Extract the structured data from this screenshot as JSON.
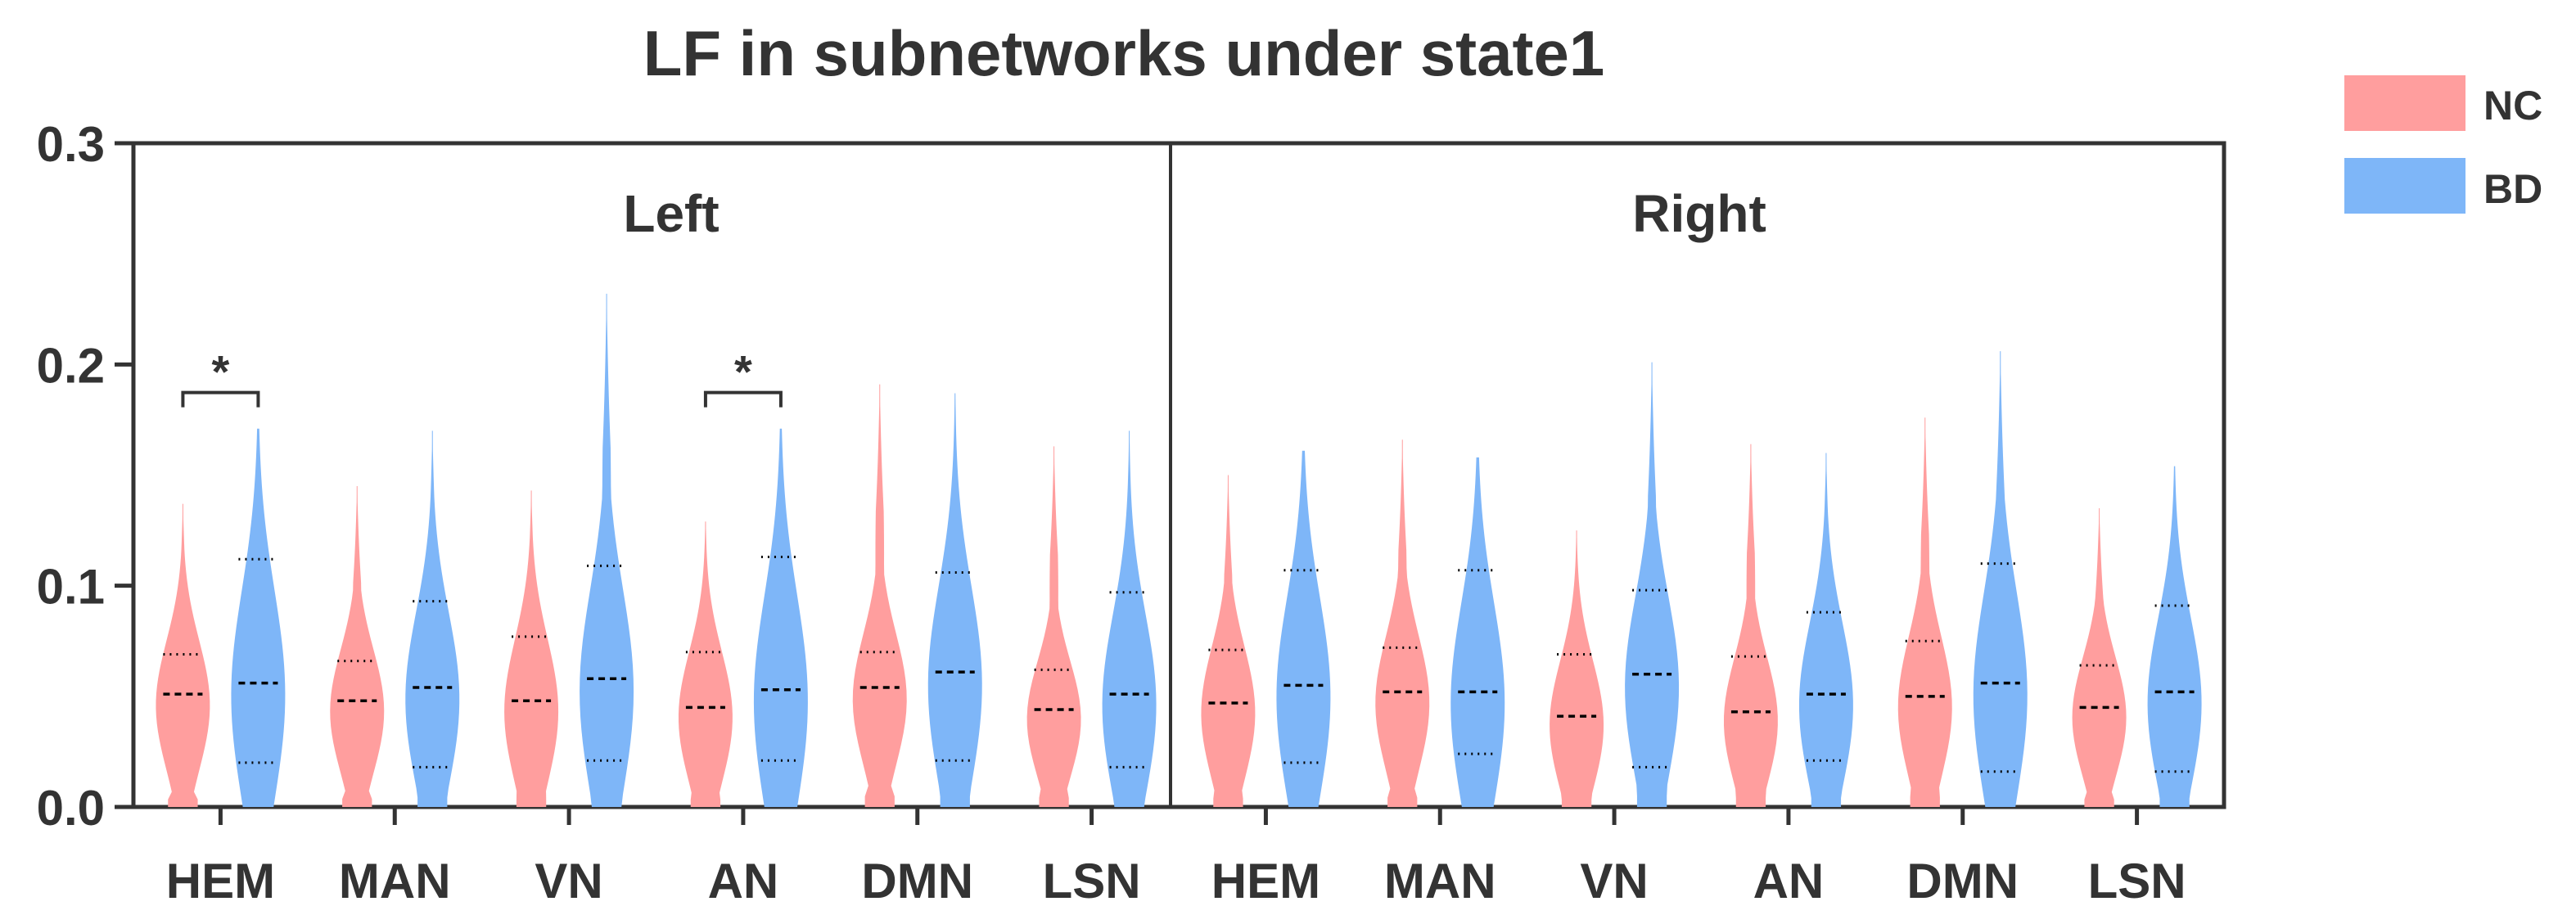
{
  "chart_data": {
    "type": "violin",
    "title": "LF in subnetworks under state1",
    "xlabel": "",
    "ylabel": "",
    "ylim": [
      0,
      0.3
    ],
    "yticks": [
      0.0,
      0.1,
      0.2,
      0.3
    ],
    "ytick_labels": [
      "0.0",
      "0.1",
      "0.2",
      "0.3"
    ],
    "grid": false,
    "legend": {
      "placement": "top-right",
      "entries": [
        {
          "name": "NC",
          "color": "#FF9E9E"
        },
        {
          "name": "BD",
          "color": "#7EB6F8"
        }
      ]
    },
    "panels": [
      {
        "label": "Left",
        "categories": [
          "HEM",
          "MAN",
          "VN",
          "AN",
          "DMN",
          "LSN"
        ],
        "groups": [
          {
            "category": "HEM",
            "significance": "*",
            "NC": {
              "min": 0.0,
              "max": 0.137,
              "q1": 0.0,
              "median": 0.051,
              "q3": 0.069
            },
            "BD": {
              "min": 0.0,
              "max": 0.171,
              "q1": 0.02,
              "median": 0.056,
              "q3": 0.112
            }
          },
          {
            "category": "MAN",
            "significance": "",
            "NC": {
              "min": 0.0,
              "max": 0.145,
              "q1": 0.0,
              "median": 0.048,
              "q3": 0.066
            },
            "BD": {
              "min": 0.0,
              "max": 0.17,
              "q1": 0.018,
              "median": 0.054,
              "q3": 0.093
            }
          },
          {
            "category": "VN",
            "significance": "",
            "NC": {
              "min": 0.0,
              "max": 0.143,
              "q1": 0.0,
              "median": 0.048,
              "q3": 0.077
            },
            "BD": {
              "min": 0.0,
              "max": 0.232,
              "q1": 0.021,
              "median": 0.058,
              "q3": 0.109
            }
          },
          {
            "category": "AN",
            "significance": "*",
            "NC": {
              "min": 0.0,
              "max": 0.129,
              "q1": 0.0,
              "median": 0.045,
              "q3": 0.07
            },
            "BD": {
              "min": 0.0,
              "max": 0.171,
              "q1": 0.021,
              "median": 0.053,
              "q3": 0.113
            }
          },
          {
            "category": "DMN",
            "significance": "",
            "NC": {
              "min": 0.0,
              "max": 0.191,
              "q1": 0.0,
              "median": 0.054,
              "q3": 0.07
            },
            "BD": {
              "min": 0.0,
              "max": 0.187,
              "q1": 0.021,
              "median": 0.061,
              "q3": 0.106
            }
          },
          {
            "category": "LSN",
            "significance": "",
            "NC": {
              "min": 0.0,
              "max": 0.163,
              "q1": 0.0,
              "median": 0.044,
              "q3": 0.062
            },
            "BD": {
              "min": 0.0,
              "max": 0.17,
              "q1": 0.018,
              "median": 0.051,
              "q3": 0.097
            }
          }
        ]
      },
      {
        "label": "Right",
        "categories": [
          "HEM",
          "MAN",
          "VN",
          "AN",
          "DMN",
          "LSN"
        ],
        "groups": [
          {
            "category": "HEM",
            "significance": "",
            "NC": {
              "min": 0.0,
              "max": 0.15,
              "q1": 0.0,
              "median": 0.047,
              "q3": 0.071
            },
            "BD": {
              "min": 0.0,
              "max": 0.161,
              "q1": 0.02,
              "median": 0.055,
              "q3": 0.107
            }
          },
          {
            "category": "MAN",
            "significance": "",
            "NC": {
              "min": 0.0,
              "max": 0.166,
              "q1": 0.0,
              "median": 0.052,
              "q3": 0.072
            },
            "BD": {
              "min": 0.0,
              "max": 0.158,
              "q1": 0.024,
              "median": 0.052,
              "q3": 0.107
            }
          },
          {
            "category": "VN",
            "significance": "",
            "NC": {
              "min": 0.0,
              "max": 0.125,
              "q1": 0.0,
              "median": 0.041,
              "q3": 0.069
            },
            "BD": {
              "min": 0.0,
              "max": 0.201,
              "q1": 0.018,
              "median": 0.06,
              "q3": 0.098
            }
          },
          {
            "category": "AN",
            "significance": "",
            "NC": {
              "min": 0.0,
              "max": 0.164,
              "q1": 0.0,
              "median": 0.043,
              "q3": 0.068
            },
            "BD": {
              "min": 0.0,
              "max": 0.16,
              "q1": 0.021,
              "median": 0.051,
              "q3": 0.088
            }
          },
          {
            "category": "DMN",
            "significance": "",
            "NC": {
              "min": 0.0,
              "max": 0.176,
              "q1": 0.0,
              "median": 0.05,
              "q3": 0.075
            },
            "BD": {
              "min": 0.0,
              "max": 0.206,
              "q1": 0.016,
              "median": 0.056,
              "q3": 0.11
            }
          },
          {
            "category": "LSN",
            "significance": "",
            "NC": {
              "min": 0.0,
              "max": 0.135,
              "q1": 0.0,
              "median": 0.045,
              "q3": 0.064
            },
            "BD": {
              "min": 0.0,
              "max": 0.154,
              "q1": 0.016,
              "median": 0.052,
              "q3": 0.091
            }
          }
        ]
      }
    ]
  }
}
